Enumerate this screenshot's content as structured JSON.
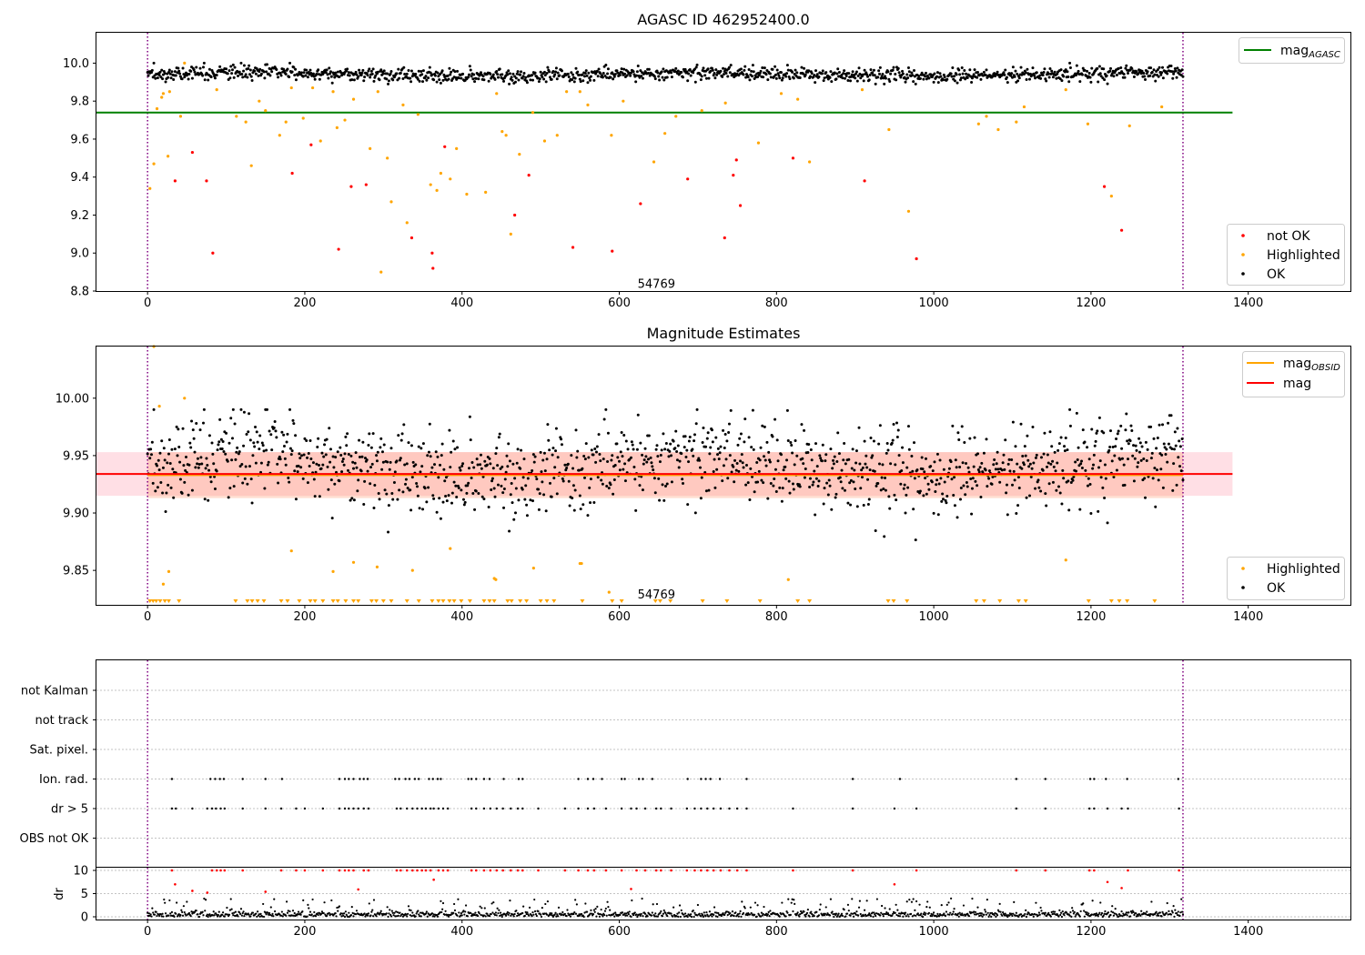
{
  "colors": {
    "ok": "#000000",
    "highlighted": "#ffa500",
    "not_ok": "#ff0000",
    "agasc_line": "#008000",
    "obsid_line": "#ffa500",
    "mag_line": "#ff0000",
    "band_mag": "#ffc0cb",
    "band_obsid": "#ffa07a",
    "vline": "#800080",
    "grid": "#b0b0b0"
  },
  "chart_data": [
    {
      "type": "scatter",
      "title": "AGASC ID 462952400.0",
      "xlim": [
        -65,
        1530
      ],
      "ylim": [
        8.8,
        10.16
      ],
      "xticks": [
        0,
        200,
        400,
        600,
        800,
        1000,
        1200,
        1400
      ],
      "yticks": [
        8.8,
        9.0,
        9.2,
        9.4,
        9.6,
        9.8,
        10.0
      ],
      "ytick_labels": [
        "8.8",
        "9.0",
        "9.2",
        "9.4",
        "9.6",
        "9.8",
        "10.0"
      ],
      "agasc_mag": 9.74,
      "agasc_line_xrange": [
        -65,
        1380
      ],
      "obsid_boundaries": [
        0,
        1317
      ],
      "annotation": {
        "text": "54769",
        "x": 658,
        "y": 8.83
      },
      "legend_top": [
        {
          "label": "mag",
          "subscript": "AGASC",
          "color": "#008000"
        }
      ],
      "legend_bottom": [
        {
          "label": "not OK",
          "color": "#ff0000"
        },
        {
          "label": "Highlighted",
          "color": "#ffa500"
        },
        {
          "label": "OK",
          "color": "#000000"
        }
      ],
      "series": [
        {
          "name": "not OK",
          "color": "#ff0000",
          "x": [
            35,
            75,
            83,
            57,
            184,
            208,
            243,
            259,
            278,
            336,
            362,
            363,
            378,
            485,
            467,
            541,
            591,
            627,
            687,
            734,
            745,
            749,
            754,
            821,
            912,
            978,
            1217,
            1239
          ],
          "y": [
            9.38,
            9.38,
            9.0,
            9.53,
            9.42,
            9.57,
            9.02,
            9.35,
            9.36,
            9.08,
            9.0,
            8.92,
            9.56,
            9.41,
            9.2,
            9.03,
            9.01,
            9.26,
            9.39,
            9.08,
            9.41,
            9.49,
            9.25,
            9.5,
            9.38,
            8.97,
            9.35,
            9.12
          ]
        },
        {
          "name": "Highlighted",
          "color": "#ffa500",
          "x": [
            3,
            8,
            12,
            18,
            20,
            26,
            28,
            42,
            47,
            88,
            113,
            125,
            132,
            142,
            150,
            168,
            176,
            183,
            198,
            210,
            220,
            236,
            241,
            251,
            262,
            283,
            293,
            297,
            305,
            310,
            325,
            330,
            344,
            360,
            368,
            373,
            385,
            393,
            406,
            430,
            444,
            451,
            456,
            462,
            473,
            490,
            505,
            521,
            533,
            550,
            560,
            590,
            605,
            644,
            658,
            672,
            705,
            735,
            777,
            806,
            827,
            842,
            909,
            943,
            968,
            1057,
            1067,
            1082,
            1105,
            1115,
            1168,
            1196,
            1226,
            1249,
            1290
          ],
          "y": [
            9.34,
            9.47,
            9.76,
            9.82,
            9.84,
            9.51,
            9.85,
            9.72,
            10.0,
            9.86,
            9.72,
            9.69,
            9.46,
            9.8,
            9.75,
            9.62,
            9.69,
            9.87,
            9.71,
            9.87,
            9.59,
            9.85,
            9.66,
            9.7,
            9.81,
            9.55,
            9.85,
            8.9,
            9.5,
            9.27,
            9.78,
            9.16,
            9.73,
            9.36,
            9.33,
            9.42,
            9.39,
            9.55,
            9.31,
            9.32,
            9.84,
            9.64,
            9.62,
            9.1,
            9.52,
            9.74,
            9.59,
            9.62,
            9.85,
            9.85,
            9.78,
            9.62,
            9.8,
            9.48,
            9.63,
            9.72,
            9.75,
            9.79,
            9.58,
            9.84,
            9.81,
            9.48,
            9.86,
            9.65,
            9.22,
            9.68,
            9.72,
            9.65,
            9.69,
            9.77,
            9.86,
            9.68,
            9.3,
            9.67,
            9.77
          ]
        }
      ]
    },
    {
      "type": "scatter",
      "title": "Magnitude Estimates",
      "xlim": [
        -65,
        1530
      ],
      "ylim": [
        9.82,
        10.045
      ],
      "xticks": [
        0,
        200,
        400,
        600,
        800,
        1000,
        1200,
        1400
      ],
      "yticks": [
        9.85,
        9.9,
        9.95,
        10.0
      ],
      "ytick_labels": [
        "9.85",
        "9.90",
        "9.95",
        "10.00"
      ],
      "mag": 9.934,
      "mag_band": [
        9.915,
        9.953
      ],
      "mag_band_xrange": [
        -65,
        1380
      ],
      "mag_obsid": 9.933,
      "obsid_band": [
        9.913,
        9.953
      ],
      "obsid_band_xrange": [
        0,
        1317
      ],
      "obsid_boundaries": [
        0,
        1317
      ],
      "annotation": {
        "text": "54769",
        "x": 658,
        "y": 9.828
      },
      "legend_top": [
        {
          "label": "mag",
          "subscript": "OBSID",
          "color": "#ffa500"
        },
        {
          "label": "mag",
          "subscript": "",
          "color": "#ff0000"
        }
      ],
      "legend_bottom": [
        {
          "label": "Highlighted",
          "color": "#ffa500"
        },
        {
          "label": "OK",
          "color": "#000000"
        }
      ],
      "highlighted_points": {
        "x": [
          8,
          15,
          20,
          27,
          47,
          183,
          236,
          262,
          292,
          337,
          385,
          441,
          443,
          491,
          550,
          552,
          587,
          815,
          1168
        ],
        "y": [
          10.045,
          9.993,
          9.838,
          9.849,
          10.0,
          9.867,
          9.849,
          9.857,
          9.853,
          9.85,
          9.869,
          9.843,
          9.842,
          9.852,
          9.856,
          9.856,
          9.831,
          9.842,
          9.859
        ]
      },
      "upper_limit_markers_x": [
        3,
        7,
        11,
        16,
        22,
        27,
        40,
        112,
        127,
        133,
        140,
        148,
        170,
        178,
        193,
        207,
        213,
        223,
        236,
        242,
        252,
        262,
        268,
        285,
        291,
        300,
        310,
        330,
        345,
        362,
        370,
        376,
        384,
        390,
        399,
        410,
        428,
        435,
        441,
        458,
        463,
        474,
        482,
        500,
        508,
        517,
        553,
        591,
        603,
        646,
        652,
        665,
        706,
        737,
        779,
        827,
        842,
        942,
        949,
        966,
        1054,
        1064,
        1084,
        1108,
        1117,
        1197,
        1226,
        1236,
        1246,
        1281
      ]
    },
    {
      "type": "scatter",
      "title": "",
      "xlim": [
        -65,
        1530
      ],
      "flag_rows": [
        "not Kalman",
        "not track",
        "Sat. pixel.",
        "Ion. rad.",
        "dr > 5",
        "OBS not OK"
      ],
      "flags": [
        {
          "row": "Ion. rad.",
          "x": [
            31,
            80,
            86,
            92,
            97,
            121,
            150,
            171,
            244,
            251,
            256,
            262,
            270,
            275,
            280,
            315,
            320,
            328,
            333,
            340,
            345,
            358,
            363,
            369,
            373,
            408,
            412,
            418,
            428,
            435,
            453,
            472,
            477,
            548,
            560,
            567,
            578,
            603,
            607,
            625,
            630,
            642,
            687,
            704,
            710,
            716,
            728,
            762,
            897,
            957,
            1105,
            1142,
            1199,
            1204,
            1219,
            1246,
            1311
          ]
        },
        {
          "row": "dr > 5",
          "x": [
            31,
            36,
            57,
            76,
            82,
            87,
            93,
            98,
            121,
            150,
            170,
            189,
            200,
            223,
            244,
            251,
            256,
            262,
            268,
            275,
            281,
            317,
            322,
            330,
            337,
            343,
            349,
            354,
            360,
            364,
            370,
            376,
            382,
            412,
            418,
            428,
            436,
            444,
            452,
            462,
            471,
            477,
            497,
            531,
            548,
            560,
            568,
            583,
            603,
            615,
            622,
            633,
            647,
            653,
            666,
            686,
            696,
            704,
            712,
            720,
            729,
            740,
            750,
            762,
            821,
            897,
            950,
            978,
            1105,
            1142,
            1198,
            1204,
            1221,
            1239,
            1247,
            1312
          ]
        }
      ],
      "dr_ylim": [
        0,
        10
      ],
      "dr_yticks": [
        0,
        5,
        10
      ],
      "dr_ylabel": "dr",
      "obsid_boundaries": [
        0,
        1317
      ],
      "dr_red_x": [
        31,
        35,
        57,
        76,
        82,
        88,
        93,
        98,
        121,
        150,
        170,
        189,
        200,
        223,
        244,
        251,
        256,
        262,
        268,
        275,
        281,
        317,
        322,
        330,
        337,
        343,
        349,
        354,
        360,
        364,
        370,
        376,
        382,
        412,
        418,
        428,
        436,
        444,
        452,
        462,
        471,
        477,
        497,
        531,
        548,
        560,
        568,
        583,
        603,
        615,
        622,
        633,
        647,
        653,
        666,
        686,
        696,
        704,
        712,
        720,
        729,
        740,
        750,
        762,
        821,
        897,
        950,
        978,
        1105,
        1142,
        1198,
        1204,
        1221,
        1239,
        1247,
        1312
      ],
      "dr_red_y": [
        10,
        7,
        5.6,
        5.2,
        10,
        10,
        10,
        10,
        10,
        5.4,
        10,
        10,
        10,
        10,
        10,
        10,
        10,
        10,
        5.9,
        10,
        10,
        10,
        10,
        10,
        10,
        10,
        10,
        10,
        10,
        8,
        10,
        10,
        10,
        10,
        10,
        10,
        10,
        10,
        10,
        10,
        10,
        10,
        10,
        10,
        10,
        10,
        10,
        10,
        10,
        6,
        10,
        10,
        10,
        10,
        10,
        10,
        10,
        10,
        10,
        10,
        10,
        10,
        10,
        10,
        10,
        10,
        7,
        10,
        10,
        10,
        10,
        10,
        7.5,
        6.2,
        10,
        10
      ]
    }
  ]
}
